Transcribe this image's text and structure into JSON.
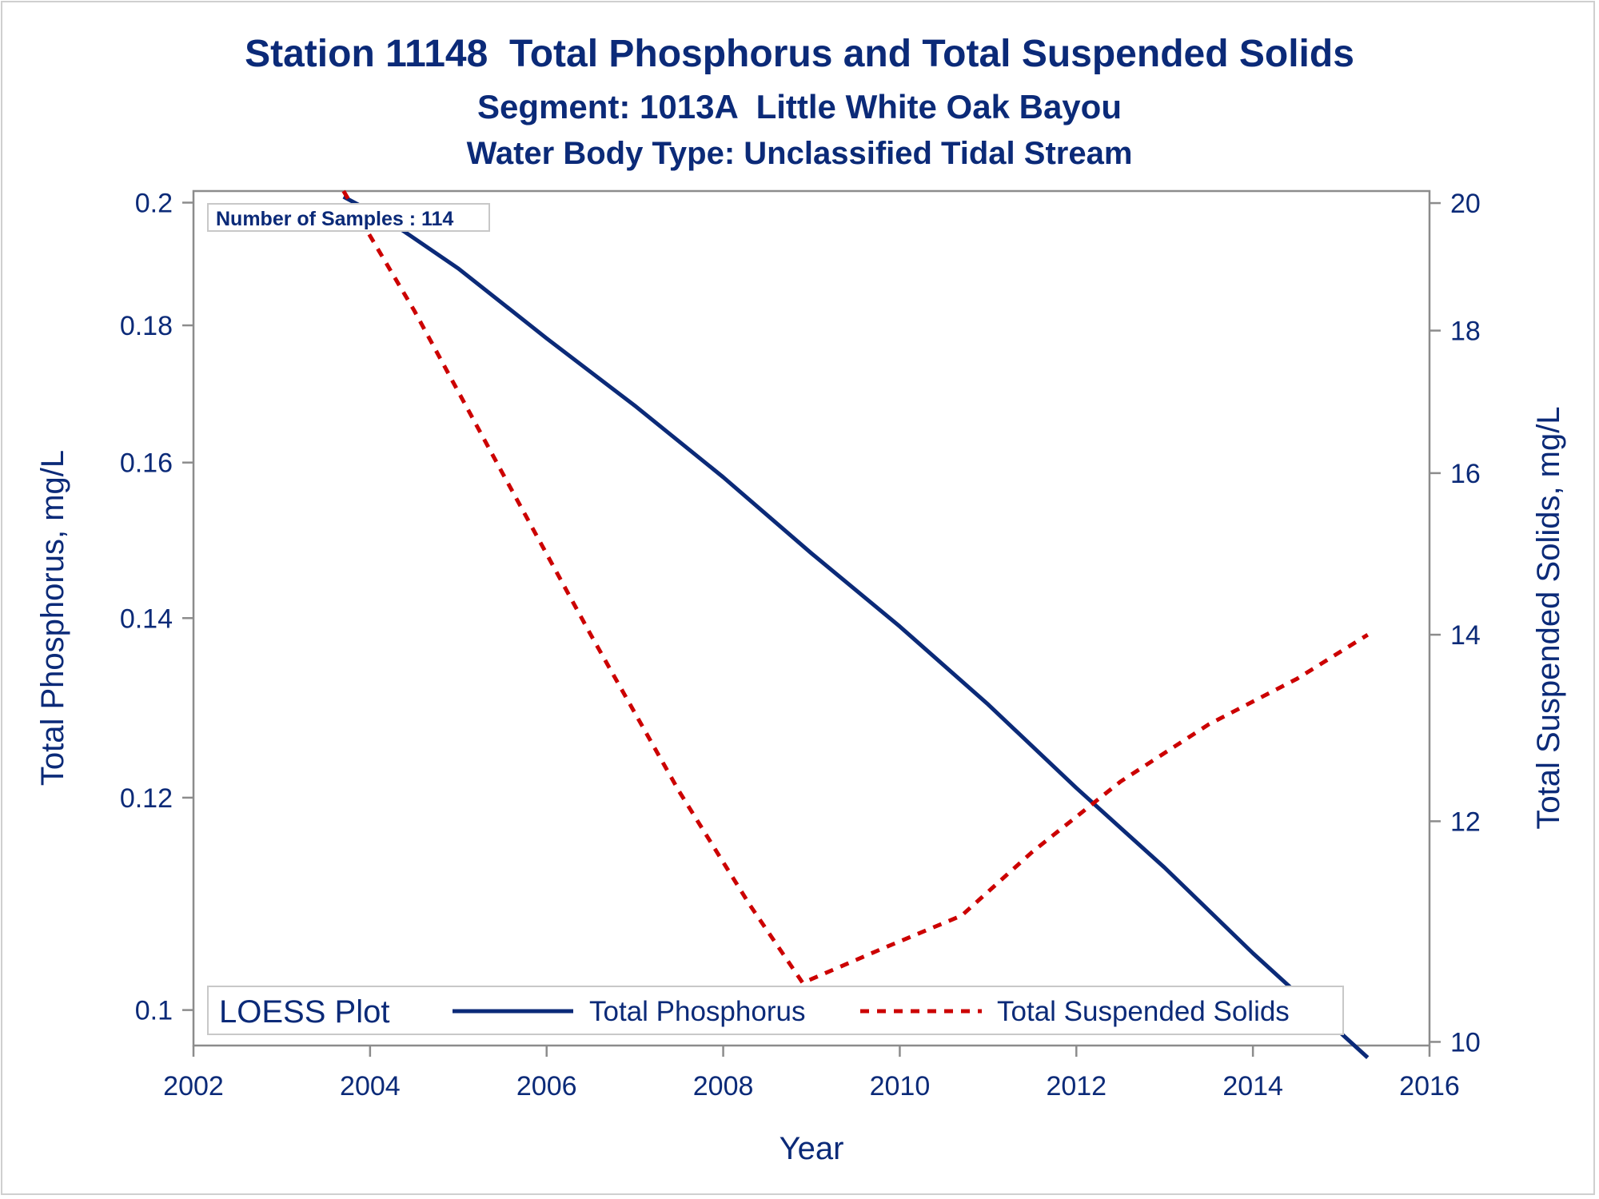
{
  "chart_data": {
    "type": "line",
    "title": "Station 11148  Total Phosphorus and Total Suspended Solids",
    "subtitle": "Segment: 1013A  Little White Oak Bayou",
    "subtitle2": "Water Body Type: Unclassified Tidal Stream",
    "xlabel": "Year",
    "ylabel": "Total Phosphorus, mg/L",
    "y2label": "Total Suspended Solids, mg/L",
    "xlim": [
      2002,
      2016
    ],
    "ylim": [
      0.097,
      0.202
    ],
    "y2lim": [
      9.97,
      20.2
    ],
    "y_scale": "log",
    "y2_scale": "log",
    "xticks": [
      "2002",
      "2004",
      "2006",
      "2008",
      "2010",
      "2012",
      "2014",
      "2016"
    ],
    "yticks": [
      "0.1",
      "0.12",
      "0.14",
      "0.16",
      "0.18",
      "0.2"
    ],
    "y2ticks": [
      "10",
      "12",
      "14",
      "16",
      "18",
      "20"
    ],
    "annotation": "Number of Samples : 114",
    "legend_title": "LOESS Plot",
    "legend_position": "bottom-inside",
    "series": [
      {
        "name": "Total Phosphorus",
        "axis": "left",
        "color": "#0b2a78",
        "style": "solid",
        "x": [
          2003.7,
          2004.2,
          2005.0,
          2006.0,
          2007.0,
          2008.0,
          2009.0,
          2010.0,
          2011.0,
          2012.0,
          2013.0,
          2014.0,
          2015.3
        ],
        "values": [
          0.201,
          0.197,
          0.189,
          0.178,
          0.168,
          0.158,
          0.148,
          0.139,
          0.13,
          0.121,
          0.113,
          0.105,
          0.096
        ]
      },
      {
        "name": "Total Suspended Solids",
        "axis": "right",
        "color": "#cc0000",
        "style": "dashed",
        "x": [
          2003.7,
          2004.5,
          2005.5,
          2006.5,
          2007.5,
          2008.3,
          2008.9,
          2009.8,
          2010.7,
          2011.5,
          2012.5,
          2013.5,
          2014.5,
          2015.3
        ],
        "values": [
          20.2,
          18.3,
          16.0,
          14.0,
          12.3,
          11.2,
          10.5,
          10.8,
          11.1,
          11.7,
          12.4,
          13.0,
          13.5,
          14.0
        ]
      }
    ]
  }
}
